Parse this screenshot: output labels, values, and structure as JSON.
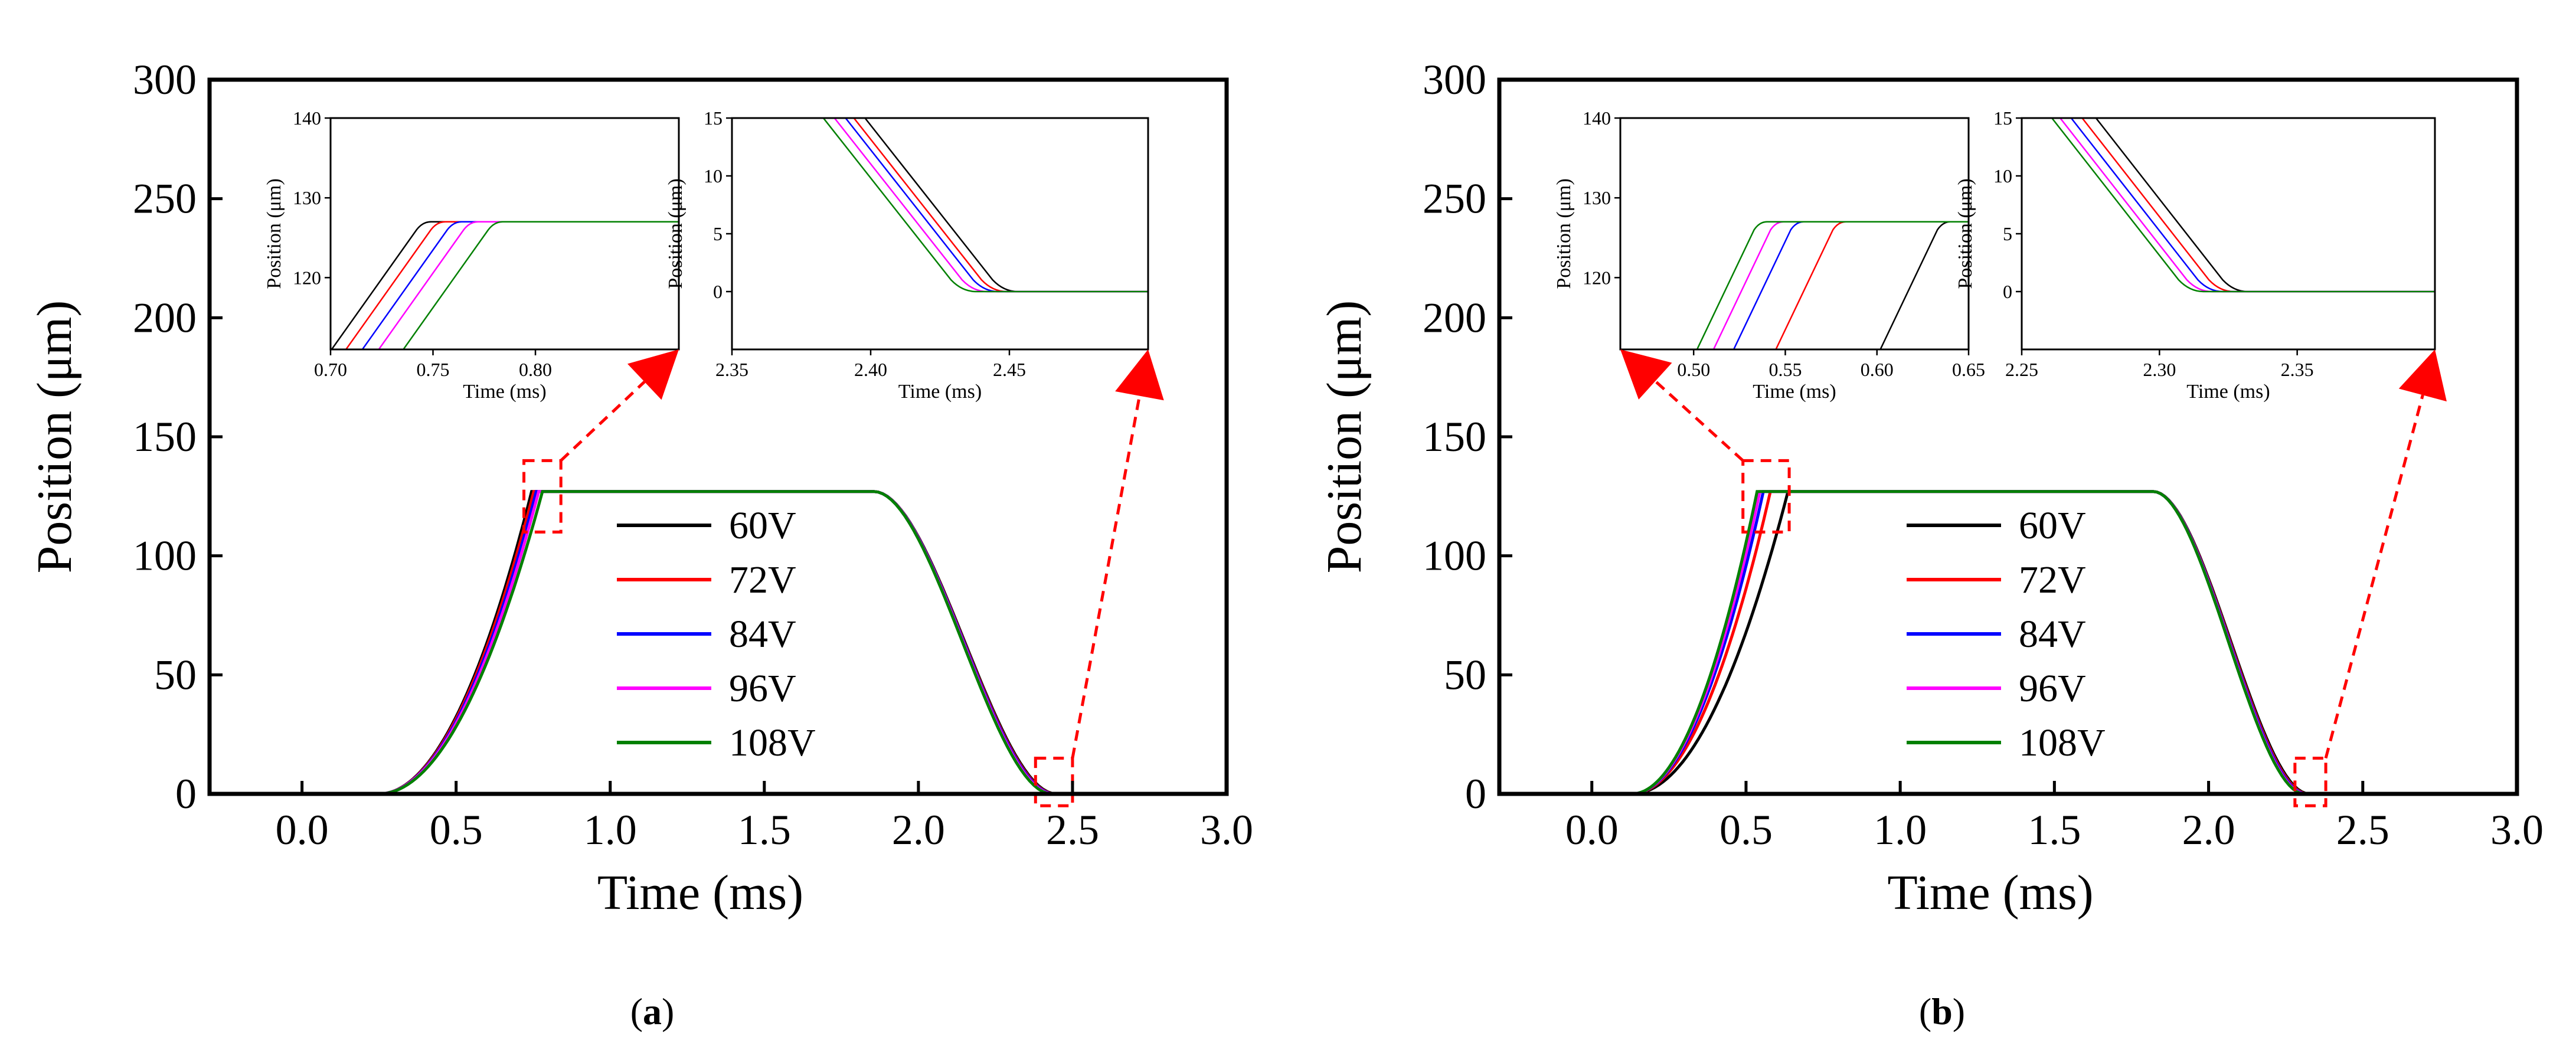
{
  "chart_data": [
    {
      "type": "line",
      "panel": "a",
      "caption_letter": "a",
      "xlabel": "Time (ms)",
      "ylabel": "Position (μm)",
      "xlim": [
        -0.3,
        3.0
      ],
      "ylim": [
        0,
        300
      ],
      "xticks": [
        "0.0",
        "0.5",
        "1.0",
        "1.5",
        "2.0",
        "2.5",
        "3.0"
      ],
      "xtick_values": [
        0.0,
        0.5,
        1.0,
        1.5,
        2.0,
        2.5,
        3.0
      ],
      "yticks": [
        "0",
        "50",
        "100",
        "150",
        "200",
        "250",
        "300"
      ],
      "ytick_values": [
        0,
        50,
        100,
        150,
        200,
        250,
        300
      ],
      "legend_position": "center",
      "plateau": 127,
      "rise_start": 0.25,
      "fall_end": 2.445,
      "tail_end": 2.6,
      "series": [
        {
          "name": "60V",
          "color": "#000000",
          "rise_end": 0.745,
          "fall_start": 1.855,
          "fall_end": 2.448
        },
        {
          "name": "72V",
          "color": "#ff0000",
          "rise_end": 0.752,
          "fall_start": 1.855,
          "fall_end": 2.444
        },
        {
          "name": "84V",
          "color": "#0000ff",
          "rise_end": 0.76,
          "fall_start": 1.855,
          "fall_end": 2.441
        },
        {
          "name": "96V",
          "color": "#ff00ff",
          "rise_end": 0.768,
          "fall_start": 1.855,
          "fall_end": 2.437
        },
        {
          "name": "108V",
          "color": "#008000",
          "rise_end": 0.78,
          "fall_start": 1.855,
          "fall_end": 2.433
        }
      ],
      "zoom_boxes": [
        [
          0.72,
          0.84,
          110,
          140
        ],
        [
          2.38,
          2.5,
          -5,
          15
        ]
      ],
      "insets": [
        {
          "mode": "rise",
          "xlabel": "Time (ms)",
          "ylabel": "Position (μm)",
          "xlim": [
            0.7,
            0.87
          ],
          "ylim": [
            111,
            140
          ],
          "xticks": [
            "0.70",
            "0.75",
            "0.80"
          ],
          "xtick_values": [
            0.7,
            0.75,
            0.8
          ],
          "yticks": [
            "120",
            "130",
            "140"
          ],
          "ytick_values": [
            120,
            130,
            140
          ],
          "ends": [
            0.745,
            0.752,
            0.76,
            0.768,
            0.78
          ],
          "slope": 360
        },
        {
          "mode": "fall",
          "xlabel": "Time (ms)",
          "ylabel": "Position (μm)",
          "xlim": [
            2.35,
            2.5
          ],
          "ylim": [
            -5,
            15
          ],
          "xticks": [
            "2.35",
            "2.40",
            "2.45"
          ],
          "xtick_values": [
            2.35,
            2.4,
            2.45
          ],
          "yticks": [
            "0",
            "5",
            "10",
            "15"
          ],
          "ytick_values": [
            0,
            5,
            10,
            15
          ],
          "ends": [
            2.448,
            2.444,
            2.441,
            2.437,
            2.433
          ],
          "slope": 300
        }
      ]
    },
    {
      "type": "line",
      "panel": "b",
      "caption_letter": "b",
      "xlabel": "Time (ms)",
      "ylabel": "Position (μm)",
      "xlim": [
        -0.3,
        3.0
      ],
      "ylim": [
        0,
        300
      ],
      "xticks": [
        "0.0",
        "0.5",
        "1.0",
        "1.5",
        "2.0",
        "2.5",
        "3.0"
      ],
      "xtick_values": [
        0.0,
        0.5,
        1.0,
        1.5,
        2.0,
        2.5,
        3.0
      ],
      "yticks": [
        "0",
        "50",
        "100",
        "150",
        "200",
        "250",
        "300"
      ],
      "ytick_values": [
        0,
        50,
        100,
        150,
        200,
        250,
        300
      ],
      "legend_position": "center",
      "plateau": 127,
      "rise_start": 0.13,
      "fall_end": 2.32,
      "tail_end": 2.6,
      "series": [
        {
          "name": "60V",
          "color": "#000000",
          "rise_end": 0.636,
          "fall_start": 1.82,
          "fall_end": 2.327
        },
        {
          "name": "72V",
          "color": "#ff0000",
          "rise_end": 0.579,
          "fall_start": 1.82,
          "fall_end": 2.322
        },
        {
          "name": "84V",
          "color": "#0000ff",
          "rise_end": 0.556,
          "fall_start": 1.82,
          "fall_end": 2.318
        },
        {
          "name": "96V",
          "color": "#ff00ff",
          "rise_end": 0.545,
          "fall_start": 1.82,
          "fall_end": 2.314
        },
        {
          "name": "108V",
          "color": "#008000",
          "rise_end": 0.536,
          "fall_start": 1.82,
          "fall_end": 2.311
        }
      ],
      "zoom_boxes": [
        [
          0.49,
          0.64,
          110,
          140
        ],
        [
          2.28,
          2.38,
          -5,
          15
        ]
      ],
      "insets": [
        {
          "mode": "rise",
          "xlabel": "Time (ms)",
          "ylabel": "Position (μm)",
          "xlim": [
            0.46,
            0.65
          ],
          "ylim": [
            111,
            140
          ],
          "xticks": [
            "0.50",
            "0.55",
            "0.60",
            "0.65"
          ],
          "xtick_values": [
            0.5,
            0.55,
            0.6,
            0.65
          ],
          "yticks": [
            "120",
            "130",
            "140"
          ],
          "ytick_values": [
            120,
            130,
            140
          ],
          "ends": [
            0.636,
            0.579,
            0.556,
            0.545,
            0.536
          ],
          "slope": 470
        },
        {
          "mode": "fall",
          "xlabel": "Time (ms)",
          "ylabel": "Position (μm)",
          "xlim": [
            2.25,
            2.4
          ],
          "ylim": [
            -5,
            15
          ],
          "xticks": [
            "2.25",
            "2.30",
            "2.35"
          ],
          "xtick_values": [
            2.25,
            2.3,
            2.35
          ],
          "yticks": [
            "0",
            "5",
            "10",
            "15"
          ],
          "ytick_values": [
            0,
            5,
            10,
            15
          ],
          "ends": [
            2.327,
            2.322,
            2.318,
            2.314,
            2.311
          ],
          "slope": 300
        }
      ]
    }
  ]
}
